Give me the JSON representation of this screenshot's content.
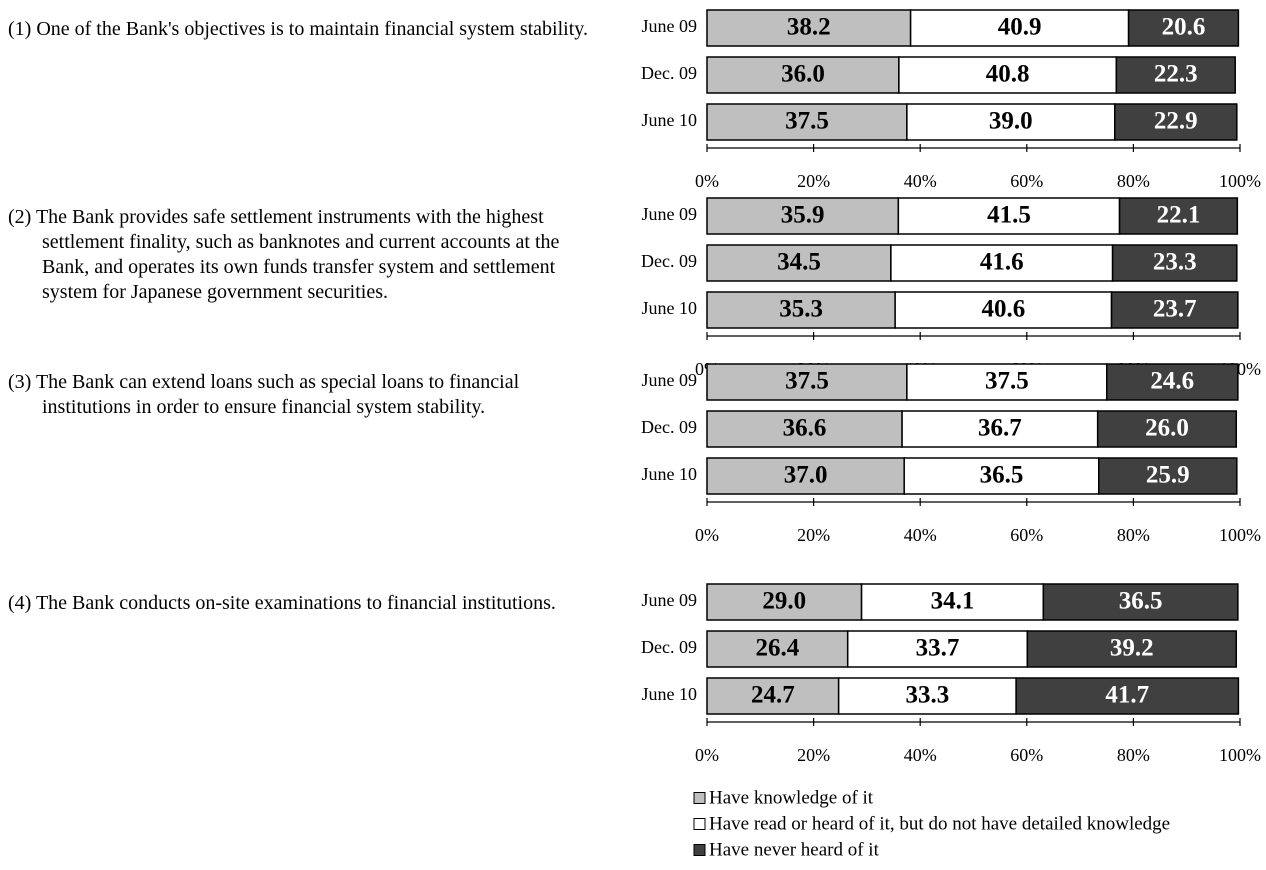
{
  "chart_data": {
    "type": "bar",
    "orientation": "horizontal",
    "stacked": true,
    "series": [
      {
        "name": "Have knowledge of it",
        "color": "#bfbfbf"
      },
      {
        "name": "Have read or heard of it, but do not have detailed knowledge",
        "color": "#ffffff"
      },
      {
        "name": "Have never heard of it",
        "color": "#404040"
      }
    ],
    "xlim": [
      0,
      100
    ],
    "xticks": [
      {
        "value": 0,
        "label": "0%"
      },
      {
        "value": 20,
        "label": "20%"
      },
      {
        "value": 40,
        "label": "40%"
      },
      {
        "value": 60,
        "label": "60%"
      },
      {
        "value": 80,
        "label": "80%"
      },
      {
        "value": 100,
        "label": "100%"
      }
    ],
    "panels": [
      {
        "title": "(1) One of the Bank's objectives is to maintain financial system stability.",
        "categories": [
          "June 09",
          "Dec. 09",
          "June 10"
        ],
        "values": [
          [
            38.2,
            36.0,
            37.5
          ],
          [
            40.9,
            40.8,
            39.0
          ],
          [
            20.6,
            22.3,
            22.9
          ]
        ],
        "value_labels": [
          [
            "38.2",
            "36.0",
            "37.5"
          ],
          [
            "40.9",
            "40.8",
            "39.0"
          ],
          [
            "20.6",
            "22.3",
            "22.9"
          ]
        ]
      },
      {
        "title": "(2) The Bank provides safe settlement instruments with the highest settlement finality, such as banknotes and current accounts at the Bank, and operates its own funds transfer system and settlement system for Japanese government securities.",
        "categories": [
          "June 09",
          "Dec. 09",
          "June 10"
        ],
        "values": [
          [
            35.9,
            34.5,
            35.3
          ],
          [
            41.5,
            41.6,
            40.6
          ],
          [
            22.1,
            23.3,
            23.7
          ]
        ],
        "value_labels": [
          [
            "35.9",
            "34.5",
            "35.3"
          ],
          [
            "41.5",
            "41.6",
            "40.6"
          ],
          [
            "22.1",
            "23.3",
            "23.7"
          ]
        ]
      },
      {
        "title": "(3) The Bank can extend loans such as special loans to financial institutions in order to ensure financial system stability.",
        "categories": [
          "June 09",
          "Dec. 09",
          "June 10"
        ],
        "values": [
          [
            37.5,
            36.6,
            37.0
          ],
          [
            37.5,
            36.7,
            36.5
          ],
          [
            24.6,
            26.0,
            25.9
          ]
        ],
        "value_labels": [
          [
            "37.5",
            "36.6",
            "37.0"
          ],
          [
            "37.5",
            "36.7",
            "36.5"
          ],
          [
            "24.6",
            "26.0",
            "25.9"
          ]
        ]
      },
      {
        "title": "(4) The Bank conducts on-site examinations to financial institutions.",
        "categories": [
          "June 09",
          "Dec. 09",
          "June 10"
        ],
        "values": [
          [
            29.0,
            26.4,
            24.7
          ],
          [
            34.1,
            33.7,
            33.3
          ],
          [
            36.5,
            39.2,
            41.7
          ]
        ],
        "value_labels": [
          [
            "29.0",
            "26.4",
            "24.7"
          ],
          [
            "34.1",
            "33.7",
            "33.3"
          ],
          [
            "36.5",
            "39.2",
            "41.7"
          ]
        ]
      }
    ]
  }
}
